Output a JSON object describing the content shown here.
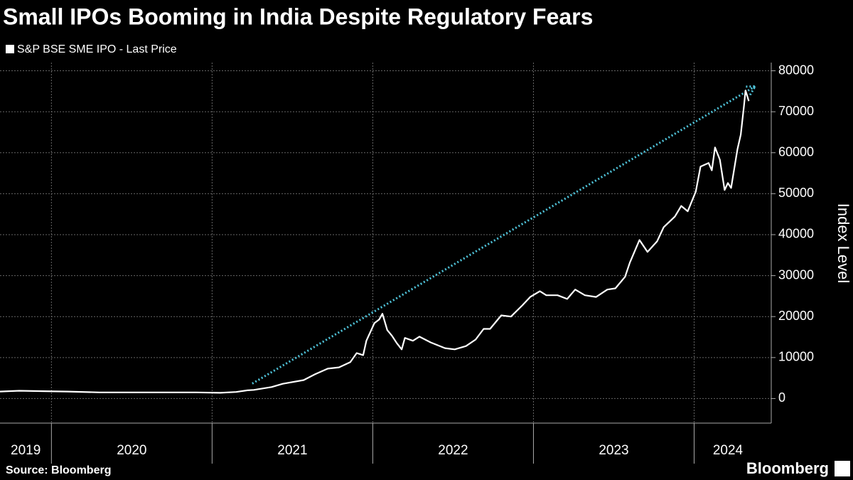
{
  "chart_data": {
    "type": "line",
    "title": "Small IPOs Booming in India Despite Regulatory Fears",
    "y_label": "Index Level",
    "source": "Source: Bloomberg",
    "logo": "Bloomberg",
    "series": [
      {
        "name": "S&P BSE SME IPO - Last Price",
        "color": "#ffffff",
        "x": [
          2019.68,
          2019.8,
          2019.95,
          2020.1,
          2020.3,
          2020.5,
          2020.7,
          2020.9,
          2021.05,
          2021.15,
          2021.22,
          2021.26,
          2021.37,
          2021.44,
          2021.57,
          2021.64,
          2021.72,
          2021.79,
          2021.86,
          2021.9,
          2021.94,
          2021.96,
          2022.01,
          2022.04,
          2022.06,
          2022.09,
          2022.12,
          2022.15,
          2022.18,
          2022.2,
          2022.25,
          2022.29,
          2022.36,
          2022.45,
          2022.51,
          2022.58,
          2022.64,
          2022.69,
          2022.73,
          2022.8,
          2022.86,
          2022.93,
          2022.98,
          2023.04,
          2023.08,
          2023.15,
          2023.21,
          2023.26,
          2023.32,
          2023.39,
          2023.46,
          2023.51,
          2023.57,
          2023.6,
          2023.66,
          2023.71,
          2023.77,
          2023.81,
          2023.88,
          2023.92,
          2023.96,
          2024.01,
          2024.04,
          2024.09,
          2024.11,
          2024.13,
          2024.16,
          2024.19,
          2024.21,
          2024.23,
          2024.27,
          2024.29,
          2024.31,
          2024.32,
          2024.34
        ],
        "values": [
          1700,
          1900,
          1800,
          1700,
          1500,
          1500,
          1500,
          1500,
          1400,
          1600,
          2000,
          2100,
          2800,
          3600,
          4500,
          5900,
          7300,
          7600,
          8900,
          11100,
          10600,
          14100,
          18400,
          19300,
          20700,
          16700,
          15300,
          13500,
          12000,
          14800,
          14100,
          15100,
          13700,
          12300,
          12000,
          12800,
          14400,
          17000,
          17000,
          20300,
          20000,
          22700,
          24800,
          26200,
          25200,
          25200,
          24300,
          26600,
          25200,
          24800,
          26600,
          26900,
          29700,
          33200,
          38700,
          35800,
          38400,
          41800,
          44400,
          47000,
          45700,
          50500,
          56600,
          57500,
          55700,
          61300,
          58300,
          50900,
          52600,
          51400,
          60900,
          64400,
          71400,
          75200,
          72600
        ]
      }
    ],
    "trend_arrow": {
      "x": [
        2021.25,
        2024.38
      ],
      "y": [
        3650,
        76200
      ],
      "color": "#4fc3d9"
    },
    "xlim": [
      2019.68,
      2024.48
    ],
    "year_boundaries": [
      2020,
      2021,
      2022,
      2023,
      2024
    ],
    "xticks": [
      {
        "value": 2019.84,
        "label": "2019"
      },
      {
        "value": 2020.5,
        "label": "2020"
      },
      {
        "value": 2021.5,
        "label": "2021"
      },
      {
        "value": 2022.5,
        "label": "2022"
      },
      {
        "value": 2023.5,
        "label": "2023"
      },
      {
        "value": 2024.21,
        "label": "2024"
      }
    ],
    "ylim": [
      -6000,
      82000
    ],
    "yticks": [
      0,
      10000,
      20000,
      30000,
      40000,
      50000,
      60000,
      70000,
      80000
    ],
    "grid": true
  }
}
